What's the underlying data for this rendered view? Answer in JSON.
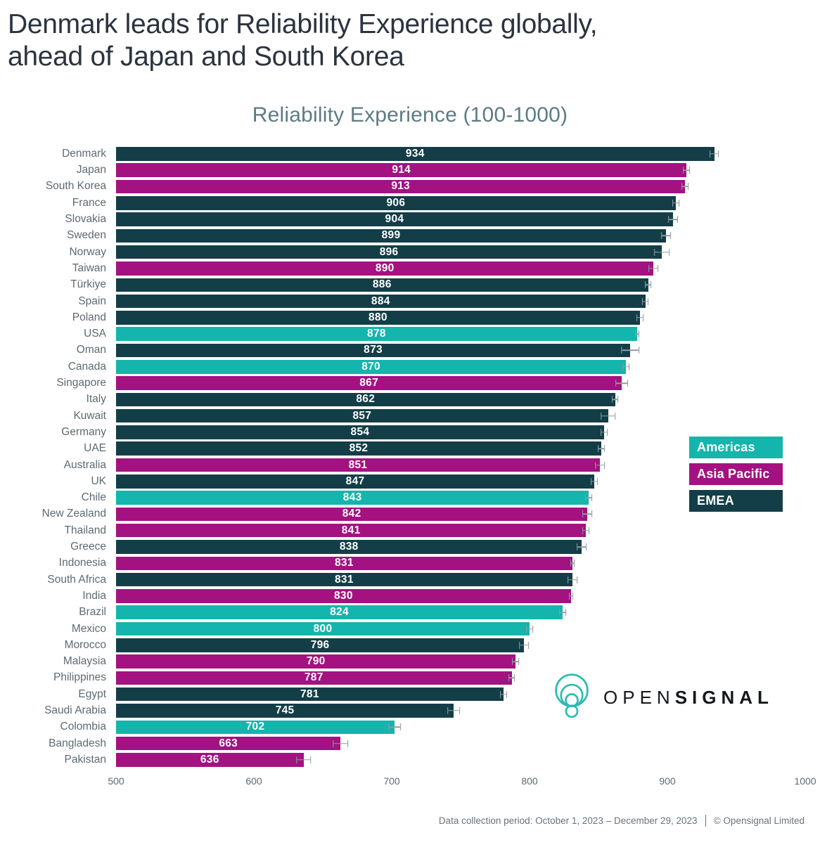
{
  "page": {
    "title_line1": "Denmark leads for Reliability Experience globally,",
    "title_line2": "ahead of Japan and South Korea"
  },
  "chart_data": {
    "type": "bar",
    "orientation": "horizontal",
    "title": "Reliability Experience (100-1000)",
    "xlabel": "",
    "ylabel": "",
    "xlim": [
      500,
      1000
    ],
    "xticks": [
      500,
      600,
      700,
      800,
      900,
      1000
    ],
    "grid": false,
    "value_labels": "centered-white",
    "error_bars": true,
    "legend_position": "right-middle",
    "legend": [
      {
        "label": "Americas",
        "color": "#13b5ac"
      },
      {
        "label": "Asia Pacific",
        "color": "#a31280"
      },
      {
        "label": "EMEA",
        "color": "#133e48"
      }
    ],
    "countries": [
      {
        "label": "Denmark",
        "value": 934,
        "region": "EMEA",
        "error": 3
      },
      {
        "label": "Japan",
        "value": 914,
        "region": "Asia Pacific",
        "error": 2
      },
      {
        "label": "South Korea",
        "value": 913,
        "region": "Asia Pacific",
        "error": 2
      },
      {
        "label": "France",
        "value": 906,
        "region": "EMEA",
        "error": 2
      },
      {
        "label": "Slovakia",
        "value": 904,
        "region": "EMEA",
        "error": 3
      },
      {
        "label": "Sweden",
        "value": 899,
        "region": "EMEA",
        "error": 3
      },
      {
        "label": "Norway",
        "value": 896,
        "region": "EMEA",
        "error": 5
      },
      {
        "label": "Taiwan",
        "value": 890,
        "region": "Asia Pacific",
        "error": 3
      },
      {
        "label": "Türkiye",
        "value": 886,
        "region": "EMEA",
        "error": 2
      },
      {
        "label": "Spain",
        "value": 884,
        "region": "EMEA",
        "error": 2
      },
      {
        "label": "Poland",
        "value": 880,
        "region": "EMEA",
        "error": 2
      },
      {
        "label": "USA",
        "value": 878,
        "region": "Americas",
        "error": 1
      },
      {
        "label": "Oman",
        "value": 873,
        "region": "EMEA",
        "error": 6
      },
      {
        "label": "Canada",
        "value": 870,
        "region": "Americas",
        "error": 2
      },
      {
        "label": "Singapore",
        "value": 867,
        "region": "Asia Pacific",
        "error": 4
      },
      {
        "label": "Italy",
        "value": 862,
        "region": "EMEA",
        "error": 2
      },
      {
        "label": "Kuwait",
        "value": 857,
        "region": "EMEA",
        "error": 5
      },
      {
        "label": "Germany",
        "value": 854,
        "region": "EMEA",
        "error": 2
      },
      {
        "label": "UAE",
        "value": 852,
        "region": "EMEA",
        "error": 2
      },
      {
        "label": "Australia",
        "value": 851,
        "region": "Asia Pacific",
        "error": 3
      },
      {
        "label": "UK",
        "value": 847,
        "region": "EMEA",
        "error": 2
      },
      {
        "label": "Chile",
        "value": 843,
        "region": "Americas",
        "error": 2
      },
      {
        "label": "New Zealand",
        "value": 842,
        "region": "Asia Pacific",
        "error": 3
      },
      {
        "label": "Thailand",
        "value": 841,
        "region": "Asia Pacific",
        "error": 2
      },
      {
        "label": "Greece",
        "value": 838,
        "region": "EMEA",
        "error": 3
      },
      {
        "label": "Indonesia",
        "value": 831,
        "region": "Asia Pacific",
        "error": 1
      },
      {
        "label": "South Africa",
        "value": 831,
        "region": "EMEA",
        "error": 3
      },
      {
        "label": "India",
        "value": 830,
        "region": "Asia Pacific",
        "error": 1
      },
      {
        "label": "Brazil",
        "value": 824,
        "region": "Americas",
        "error": 2
      },
      {
        "label": "Mexico",
        "value": 800,
        "region": "Americas",
        "error": 2
      },
      {
        "label": "Morocco",
        "value": 796,
        "region": "EMEA",
        "error": 3
      },
      {
        "label": "Malaysia",
        "value": 790,
        "region": "Asia Pacific",
        "error": 2
      },
      {
        "label": "Philippines",
        "value": 787,
        "region": "Asia Pacific",
        "error": 2
      },
      {
        "label": "Egypt",
        "value": 781,
        "region": "EMEA",
        "error": 2
      },
      {
        "label": "Saudi Arabia",
        "value": 745,
        "region": "EMEA",
        "error": 4
      },
      {
        "label": "Colombia",
        "value": 702,
        "region": "Americas",
        "error": 4
      },
      {
        "label": "Bangladesh",
        "value": 663,
        "region": "Asia Pacific",
        "error": 5
      },
      {
        "label": "Pakistan",
        "value": 636,
        "region": "Asia Pacific",
        "error": 5
      }
    ]
  },
  "logo": {
    "brand_prefix": "OPEN",
    "brand_suffix": "SIGNAL",
    "icon_color": "#2bbcb2"
  },
  "footer": {
    "period": "Data collection period: October 1, 2023 – December 29, 2023",
    "copyright": "© Opensignal Limited"
  }
}
